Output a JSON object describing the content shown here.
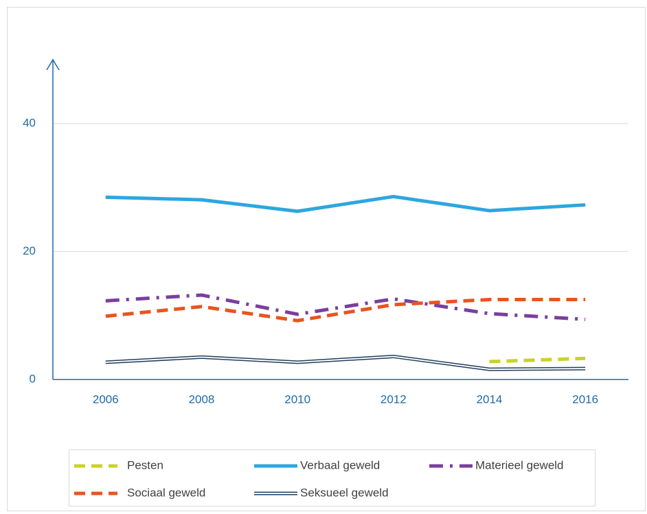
{
  "chart_data": {
    "type": "line",
    "categories": [
      "2006",
      "2008",
      "2010",
      "2012",
      "2014",
      "2016"
    ],
    "series": [
      {
        "name": "Pesten",
        "color": "#c8d32a",
        "style": "dashed",
        "values": [
          null,
          null,
          null,
          null,
          2.8,
          3.3
        ]
      },
      {
        "name": "Verbaal geweld",
        "color": "#2ea6df",
        "style": "solid",
        "values": [
          28.5,
          28.1,
          26.3,
          28.6,
          26.4,
          27.3
        ]
      },
      {
        "name": "Materieel geweld",
        "color": "#7a3f9d",
        "style": "dashdot",
        "values": [
          12.3,
          13.2,
          10.2,
          12.6,
          10.3,
          9.4
        ]
      },
      {
        "name": "Sociaal geweld",
        "color": "#e9541f",
        "style": "dashed",
        "values": [
          9.9,
          11.4,
          9.2,
          11.7,
          12.5,
          12.5
        ]
      },
      {
        "name": "Seksueel geweld",
        "color": "#1f3d5a",
        "style": "double",
        "values": [
          2.7,
          3.5,
          2.7,
          3.6,
          1.6,
          1.7
        ]
      }
    ],
    "ylim": [
      0,
      50
    ],
    "yticks": [
      0,
      20,
      40
    ],
    "grid": true
  }
}
